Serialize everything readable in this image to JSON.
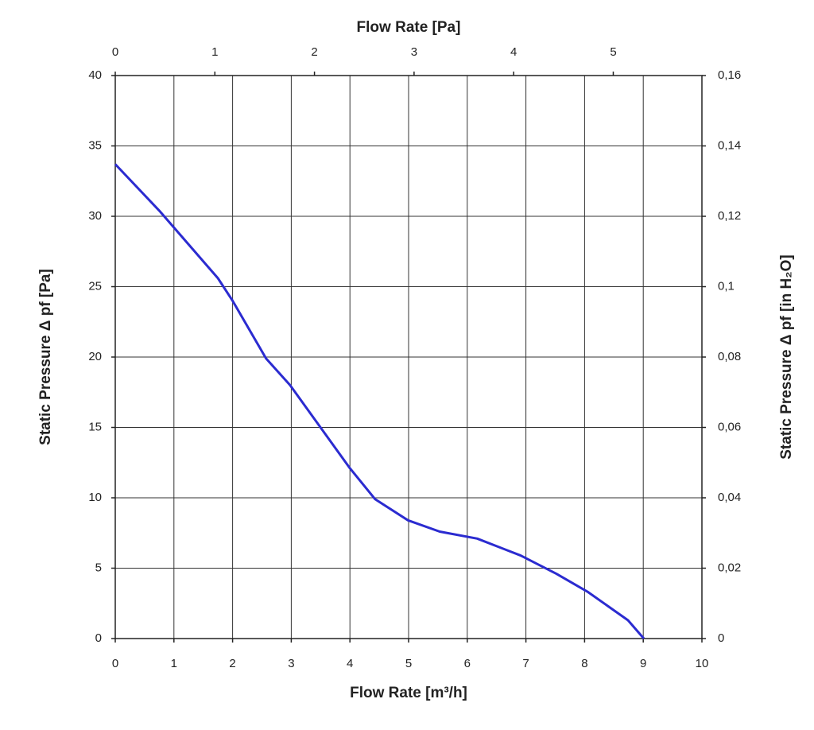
{
  "chart_data": {
    "type": "line",
    "title": "Flow Rate [Pa]",
    "x_label": "Flow Rate [m³/h]",
    "y_label": "Static Pressure Δ pf [Pa]",
    "y2_label": "Static Pressure Δ pf [in H₂O]",
    "x": [
      0,
      0.75,
      1.75,
      2,
      2.57,
      2.98,
      4,
      4.43,
      4.99,
      5.53,
      6.17,
      6.91,
      7.52,
      8.06,
      8.74,
      9.01
    ],
    "series": [
      {
        "color": "#2b2bd0",
        "values": [
          33.7,
          30.4,
          25.6,
          24,
          19.9,
          18,
          12.1,
          9.9,
          8.4,
          7.6,
          7.1,
          5.9,
          4.6,
          3.3,
          1.3,
          0
        ]
      }
    ],
    "xlim": [
      0,
      10
    ],
    "xticks": [
      0,
      1,
      2,
      3,
      4,
      5,
      6,
      7,
      8,
      9,
      10
    ],
    "x2lim": [
      0,
      5.89
    ],
    "x2ticks": [
      0,
      1,
      2,
      3,
      4,
      5
    ],
    "ylim": [
      0,
      40
    ],
    "yticks": [
      0,
      5,
      10,
      15,
      20,
      25,
      30,
      35,
      40
    ],
    "y2lim": [
      0,
      0.16
    ],
    "y2ticks": [
      0,
      {
        "value": 0.02,
        "label": "0,02"
      },
      {
        "value": 0.04,
        "label": "0,04"
      },
      {
        "value": 0.06,
        "label": "0,06"
      },
      {
        "value": 0.08,
        "label": "0,08"
      },
      {
        "value": 0.1,
        "label": "0,1"
      },
      {
        "value": 0.12,
        "label": "0,12"
      },
      {
        "value": 0.14,
        "label": "0,14"
      },
      {
        "value": 0.16,
        "label": "0,16"
      }
    ],
    "grid": true
  }
}
